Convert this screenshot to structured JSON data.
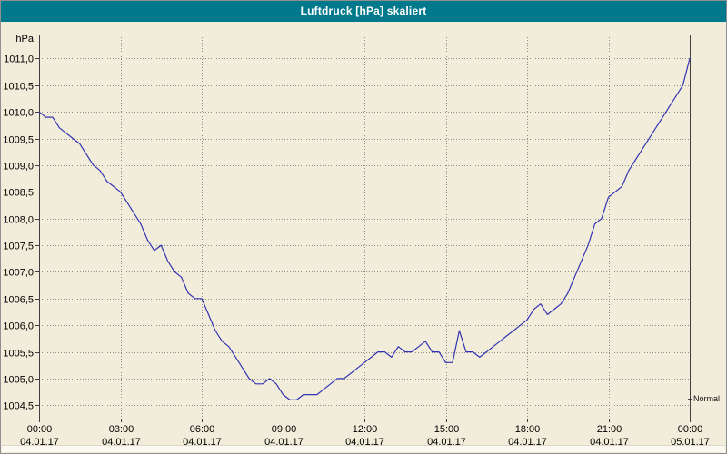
{
  "window": {
    "title": "Luftdruck [hPa] skaliert"
  },
  "colors": {
    "titlebar": "#00798c",
    "title_text": "#ffffff",
    "background": "#f2edda",
    "grid": "#8c8c8c",
    "axis": "#404040",
    "line": "#3333b3"
  },
  "chart_data": {
    "type": "line",
    "title": "Luftdruck [hPa] skaliert",
    "ylabel": "hPa",
    "xlabel": "",
    "grid": true,
    "legend_position": "bottom-right",
    "ylim": [
      1004.25,
      1011.45
    ],
    "xlim_hours": [
      0,
      24
    ],
    "y_ticks": {
      "values": [
        1011.0,
        1010.5,
        1010.0,
        1009.5,
        1009.0,
        1008.5,
        1008.0,
        1007.5,
        1007.0,
        1006.5,
        1006.0,
        1005.5,
        1005.0,
        1004.5
      ],
      "labels": [
        "1011,0",
        "1010,5",
        "1010,0",
        "1009,5",
        "1009,0",
        "1008,5",
        "1008,0",
        "1007,5",
        "1007,0",
        "1006,5",
        "1006,0",
        "1005,5",
        "1005,0",
        "1004,5"
      ]
    },
    "x_ticks": {
      "hours": [
        0,
        3,
        6,
        9,
        12,
        15,
        18,
        21,
        24
      ],
      "time_labels": [
        "00:00",
        "03:00",
        "06:00",
        "09:00",
        "12:00",
        "15:00",
        "18:00",
        "21:00",
        "00:00"
      ],
      "date_labels": [
        "04.01.17",
        "04.01.17",
        "04.01.17",
        "04.01.17",
        "04.01.17",
        "04.01.17",
        "04.01.17",
        "04.01.17",
        "05.01.17"
      ]
    },
    "series": [
      {
        "name": "Normal",
        "color": "#3333b3",
        "x_start_hour": 0,
        "x_step_hours": 0.25,
        "values": [
          1010.0,
          1009.9,
          1009.9,
          1009.7,
          1009.6,
          1009.5,
          1009.4,
          1009.2,
          1009.0,
          1008.9,
          1008.7,
          1008.6,
          1008.5,
          1008.3,
          1008.1,
          1007.9,
          1007.6,
          1007.4,
          1007.5,
          1007.2,
          1007.0,
          1006.9,
          1006.6,
          1006.5,
          1006.5,
          1006.2,
          1005.9,
          1005.7,
          1005.6,
          1005.4,
          1005.2,
          1005.0,
          1004.9,
          1004.9,
          1005.0,
          1004.9,
          1004.7,
          1004.6,
          1004.6,
          1004.7,
          1004.7,
          1004.7,
          1004.8,
          1004.9,
          1005.0,
          1005.0,
          1005.1,
          1005.2,
          1005.3,
          1005.4,
          1005.5,
          1005.5,
          1005.4,
          1005.6,
          1005.5,
          1005.5,
          1005.6,
          1005.7,
          1005.5,
          1005.5,
          1005.3,
          1005.3,
          1005.9,
          1005.5,
          1005.5,
          1005.4,
          1005.5,
          1005.6,
          1005.7,
          1005.8,
          1005.9,
          1006.0,
          1006.1,
          1006.3,
          1006.4,
          1006.2,
          1006.3,
          1006.4,
          1006.6,
          1006.9,
          1007.2,
          1007.5,
          1007.9,
          1008.0,
          1008.4,
          1008.5,
          1008.6,
          1008.9,
          1009.1,
          1009.3,
          1009.5,
          1009.7,
          1009.9,
          1010.1,
          1010.3,
          1010.5,
          1011.0
        ]
      }
    ]
  }
}
